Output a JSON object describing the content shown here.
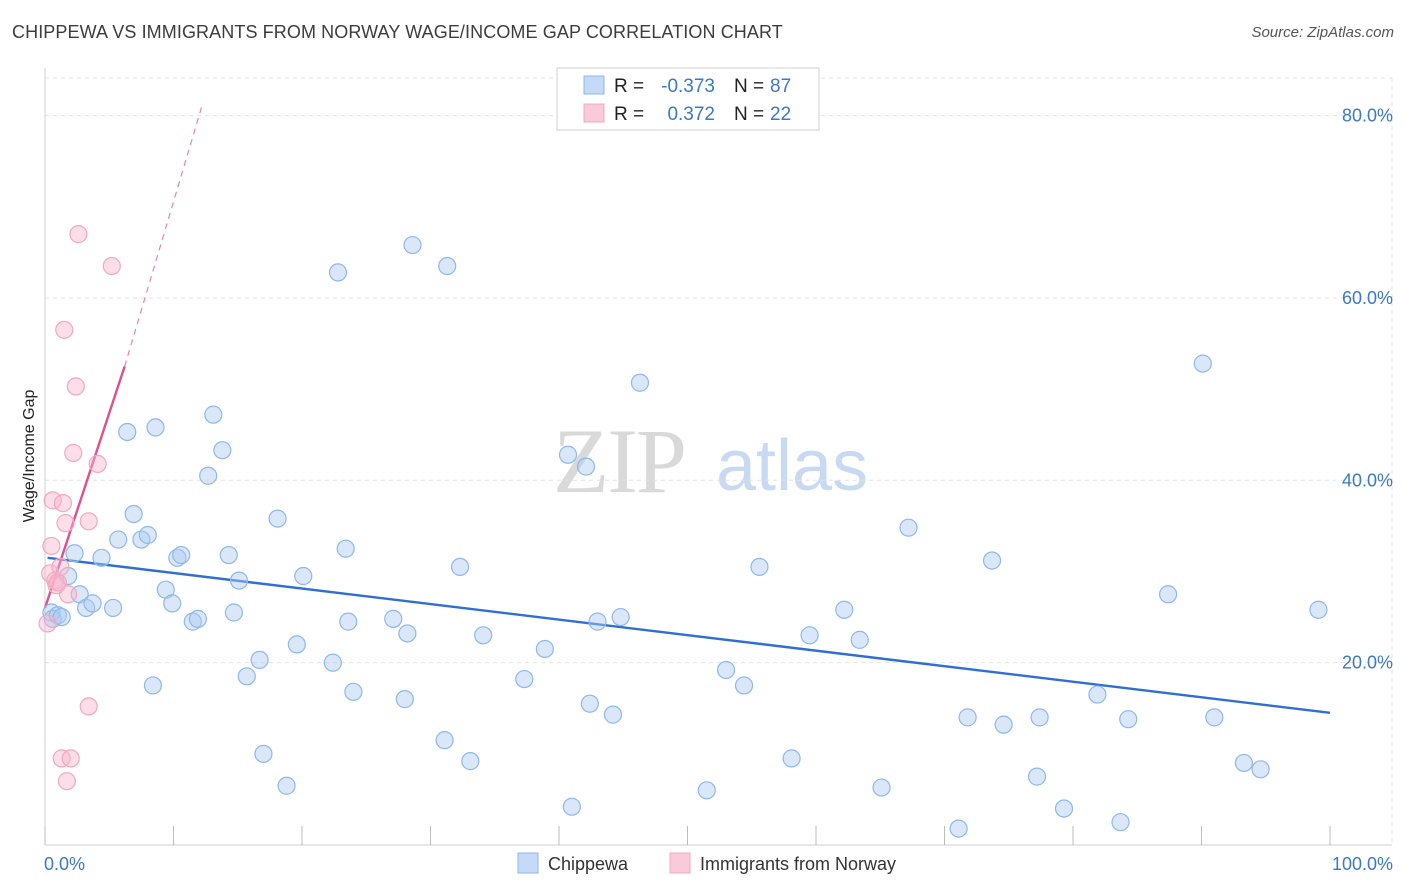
{
  "title": "CHIPPEWA VS IMMIGRANTS FROM NORWAY WAGE/INCOME GAP CORRELATION CHART",
  "source": "Source: ZipAtlas.com",
  "watermark": {
    "zip": "ZIP",
    "atlas": "atlas"
  },
  "chart_data": {
    "type": "scatter",
    "xlabel": "",
    "ylabel": "Wage/Income Gap",
    "xlim": [
      0,
      100
    ],
    "ylim": [
      0,
      85
    ],
    "x_tick_labels": [
      "0.0%",
      "100.0%"
    ],
    "y_ticks": [
      20,
      40,
      60,
      80
    ],
    "y_tick_labels": [
      "20.0%",
      "40.0%",
      "60.0%",
      "80.0%"
    ],
    "legend_stats": [
      {
        "r_label": "R =",
        "r": "-0.373",
        "n_label": "N =",
        "n": "87"
      },
      {
        "r_label": "R =",
        "r": "0.372",
        "n_label": "N =",
        "n": "22"
      }
    ],
    "series": [
      {
        "name": "Chippewa",
        "color": "#8fb8ea",
        "line_color": "#2e6fd0",
        "trend": {
          "x0": 0.2,
          "y0": 31.5,
          "x1": 100,
          "y1": 14.5
        },
        "points": [
          [
            0.5,
            25.5
          ],
          [
            0.6,
            24.8
          ],
          [
            1.0,
            25.2
          ],
          [
            1.3,
            25.0
          ],
          [
            1.8,
            29.5
          ],
          [
            2.3,
            32.0
          ],
          [
            2.7,
            27.5
          ],
          [
            3.2,
            26.0
          ],
          [
            3.7,
            26.5
          ],
          [
            4.4,
            31.5
          ],
          [
            5.3,
            26.0
          ],
          [
            5.7,
            33.5
          ],
          [
            6.4,
            45.3
          ],
          [
            6.9,
            36.3
          ],
          [
            7.5,
            33.5
          ],
          [
            8.0,
            34.0
          ],
          [
            8.4,
            17.5
          ],
          [
            8.6,
            45.8
          ],
          [
            9.4,
            28.0
          ],
          [
            9.9,
            26.5
          ],
          [
            10.3,
            31.5
          ],
          [
            10.6,
            31.8
          ],
          [
            11.5,
            24.5
          ],
          [
            11.9,
            24.8
          ],
          [
            12.7,
            40.5
          ],
          [
            13.1,
            47.2
          ],
          [
            13.8,
            43.3
          ],
          [
            14.3,
            31.8
          ],
          [
            14.7,
            25.5
          ],
          [
            15.1,
            29.0
          ],
          [
            15.7,
            18.5
          ],
          [
            16.7,
            20.3
          ],
          [
            17.0,
            10.0
          ],
          [
            18.1,
            35.8
          ],
          [
            18.8,
            6.5
          ],
          [
            19.6,
            22.0
          ],
          [
            20.1,
            29.5
          ],
          [
            22.4,
            20.0
          ],
          [
            22.8,
            62.8
          ],
          [
            23.4,
            32.5
          ],
          [
            23.6,
            24.5
          ],
          [
            24.0,
            16.8
          ],
          [
            27.1,
            24.8
          ],
          [
            28.0,
            16.0
          ],
          [
            28.2,
            23.2
          ],
          [
            28.6,
            65.8
          ],
          [
            31.1,
            11.5
          ],
          [
            31.3,
            63.5
          ],
          [
            32.3,
            30.5
          ],
          [
            33.1,
            9.2
          ],
          [
            34.1,
            23.0
          ],
          [
            37.3,
            18.2
          ],
          [
            38.9,
            21.5
          ],
          [
            40.7,
            42.8
          ],
          [
            41.0,
            4.2
          ],
          [
            42.1,
            41.5
          ],
          [
            42.4,
            15.5
          ],
          [
            43.0,
            24.5
          ],
          [
            44.2,
            14.3
          ],
          [
            44.8,
            25.0
          ],
          [
            46.3,
            50.7
          ],
          [
            51.5,
            6.0
          ],
          [
            53.0,
            19.2
          ],
          [
            54.4,
            17.5
          ],
          [
            55.6,
            30.5
          ],
          [
            58.1,
            9.5
          ],
          [
            59.5,
            23.0
          ],
          [
            62.2,
            25.8
          ],
          [
            63.4,
            22.5
          ],
          [
            65.1,
            6.3
          ],
          [
            67.2,
            34.8
          ],
          [
            71.1,
            1.8
          ],
          [
            71.8,
            14.0
          ],
          [
            73.7,
            31.2
          ],
          [
            74.6,
            13.2
          ],
          [
            77.2,
            7.5
          ],
          [
            77.4,
            14.0
          ],
          [
            79.3,
            4.0
          ],
          [
            81.9,
            16.5
          ],
          [
            83.7,
            2.5
          ],
          [
            84.3,
            13.8
          ],
          [
            87.4,
            27.5
          ],
          [
            90.1,
            52.8
          ],
          [
            91.0,
            14.0
          ],
          [
            93.3,
            9.0
          ],
          [
            94.6,
            8.3
          ],
          [
            99.1,
            25.8
          ]
        ]
      },
      {
        "name": "Immigrants from Norway",
        "color": "#f4a8c0",
        "line_color": "#e0508a",
        "trend": {
          "x0": 0.0,
          "y0": 26.0,
          "x1": 6.2,
          "y1": 52.5
        },
        "trend_dash": {
          "x0": 6.2,
          "y0": 52.5,
          "x1": 12.2,
          "y1": 81.0
        },
        "points": [
          [
            0.2,
            24.3
          ],
          [
            0.4,
            29.8
          ],
          [
            0.5,
            32.8
          ],
          [
            0.6,
            37.8
          ],
          [
            0.8,
            29.0
          ],
          [
            0.9,
            28.5
          ],
          [
            1.0,
            28.8
          ],
          [
            1.2,
            30.5
          ],
          [
            1.3,
            9.5
          ],
          [
            1.4,
            37.5
          ],
          [
            1.5,
            56.5
          ],
          [
            1.6,
            35.3
          ],
          [
            1.7,
            7.0
          ],
          [
            1.8,
            27.5
          ],
          [
            2.0,
            9.5
          ],
          [
            2.2,
            43.0
          ],
          [
            2.4,
            50.3
          ],
          [
            2.6,
            67.0
          ],
          [
            3.4,
            35.5
          ],
          [
            3.4,
            15.2
          ],
          [
            4.1,
            41.8
          ],
          [
            5.2,
            63.5
          ]
        ]
      }
    ]
  }
}
